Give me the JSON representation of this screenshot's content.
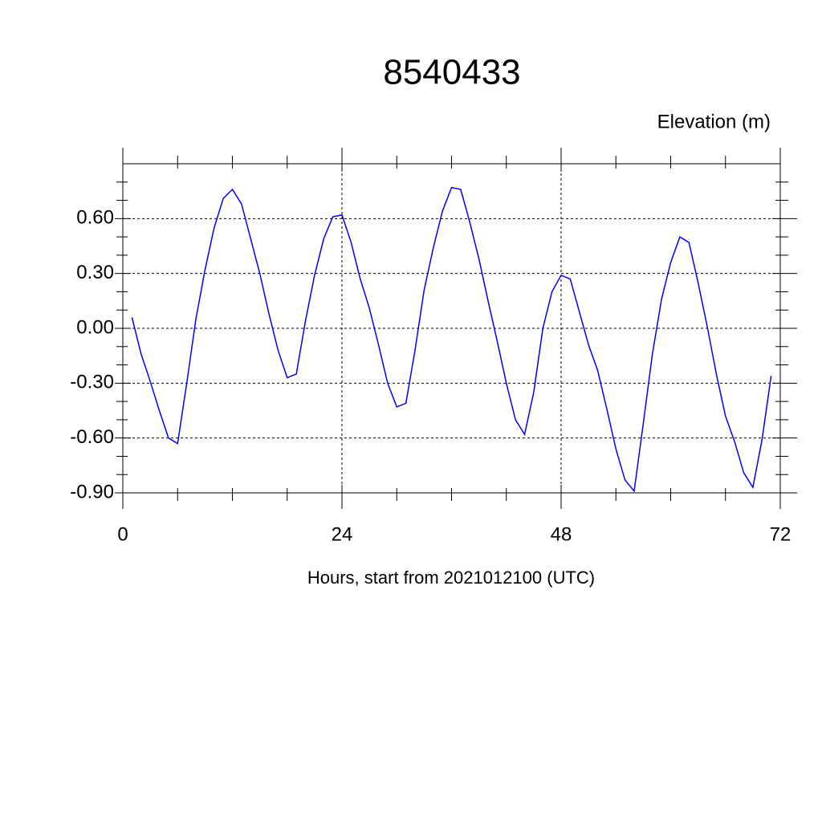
{
  "chart_data": {
    "type": "line",
    "title": "8540433",
    "y_label": "Elevation (m)",
    "x_label": "Hours, start from 2021012100 (UTC)",
    "x": [
      1,
      2,
      3,
      4,
      5,
      6,
      7,
      8,
      9,
      10,
      11,
      12,
      13,
      14,
      15,
      16,
      17,
      18,
      19,
      20,
      21,
      22,
      23,
      24,
      25,
      26,
      27,
      28,
      29,
      30,
      31,
      32,
      33,
      34,
      35,
      36,
      37,
      38,
      39,
      40,
      41,
      42,
      43,
      44,
      45,
      46,
      47,
      48,
      49,
      50,
      51,
      52,
      53,
      54,
      55,
      56,
      57,
      58,
      59,
      60,
      61,
      62,
      63,
      64,
      65,
      66,
      67,
      68,
      69,
      70,
      71
    ],
    "series": [
      {
        "color": "#0000ff",
        "values": [
          0.06,
          -0.14,
          -0.29,
          -0.45,
          -0.6,
          -0.63,
          -0.3,
          0.05,
          0.32,
          0.55,
          0.71,
          0.76,
          0.68,
          0.49,
          0.3,
          0.08,
          -0.12,
          -0.27,
          -0.25,
          0.04,
          0.29,
          0.49,
          0.61,
          0.62,
          0.47,
          0.27,
          0.11,
          -0.09,
          -0.3,
          -0.43,
          -0.41,
          -0.12,
          0.21,
          0.44,
          0.64,
          0.77,
          0.76,
          0.58,
          0.38,
          0.15,
          -0.07,
          -0.3,
          -0.5,
          -0.58,
          -0.35,
          0.0,
          0.2,
          0.29,
          0.27,
          0.09,
          -0.09,
          -0.23,
          -0.44,
          -0.66,
          -0.83,
          -0.89,
          -0.52,
          -0.14,
          0.16,
          0.36,
          0.5,
          0.47,
          0.25,
          0.01,
          -0.25,
          -0.48,
          -0.62,
          -0.79,
          -0.87,
          -0.61,
          -0.26
        ]
      }
    ],
    "xlim": [
      0,
      72
    ],
    "xticks": [
      0,
      24,
      48,
      72
    ],
    "xminorticks": [
      6,
      12,
      18,
      30,
      36,
      42,
      54,
      60,
      66
    ],
    "ylim": [
      -0.9,
      0.9
    ],
    "yticks": [
      {
        "value": -0.9,
        "label": "-0.90"
      },
      {
        "value": -0.6,
        "label": "-0.60"
      },
      {
        "value": -0.3,
        "label": "-0.30"
      },
      {
        "value": 0,
        "label": "0.00"
      },
      {
        "value": 0.3,
        "label": "0.30"
      },
      {
        "value": 0.6,
        "label": "0.60"
      }
    ],
    "yminorticks": [
      -0.8,
      -0.7,
      -0.5,
      -0.4,
      -0.2,
      -0.1,
      0.1,
      0.2,
      0.4,
      0.5,
      0.7,
      0.8
    ],
    "grid": true
  }
}
